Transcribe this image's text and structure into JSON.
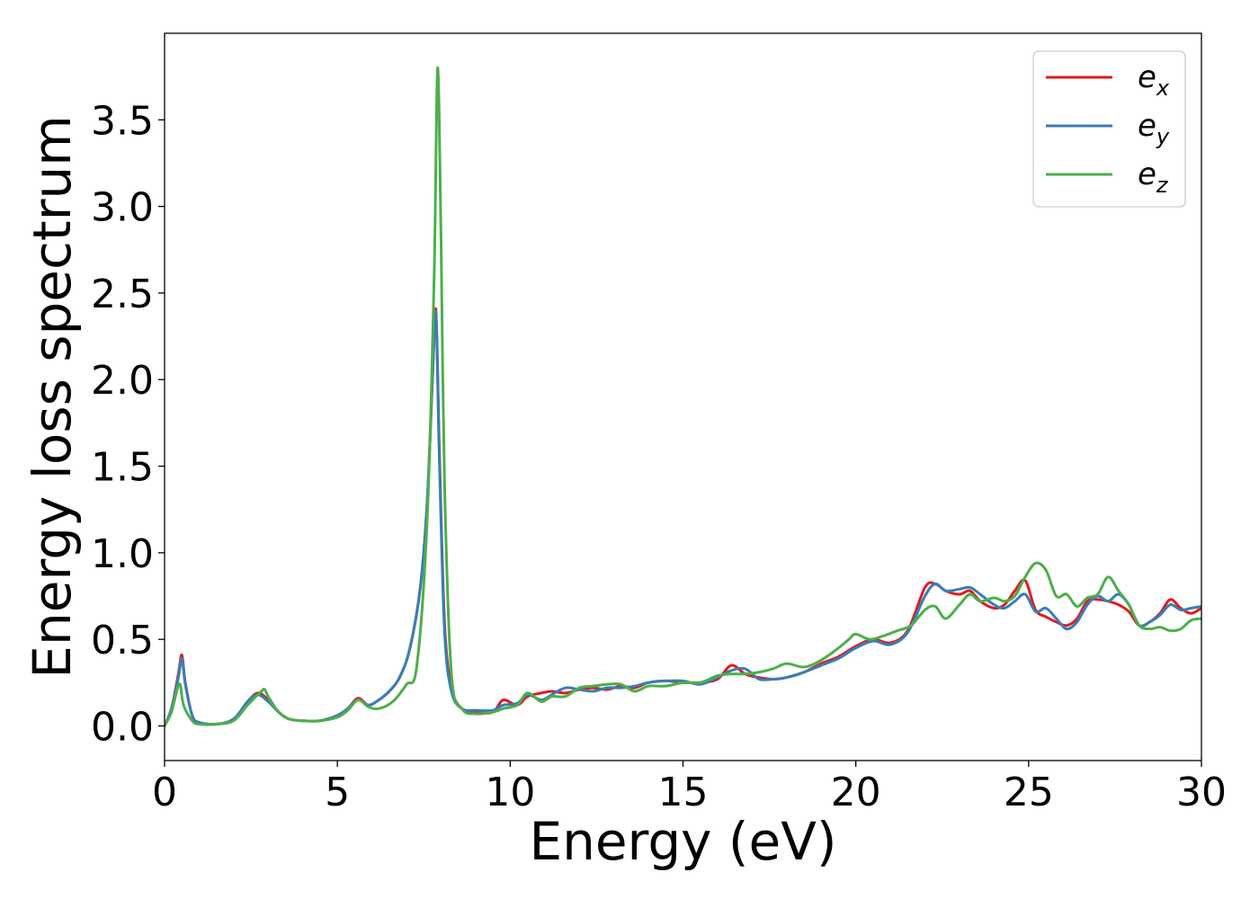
{
  "chart_data": {
    "type": "line",
    "xlabel": "Energy (eV)",
    "ylabel": "Energy loss spectrum",
    "xlim": [
      0,
      30
    ],
    "ylim": [
      -0.2,
      4.0
    ],
    "x_ticks": [
      0,
      5,
      10,
      15,
      20,
      25,
      30
    ],
    "x_tick_labels": [
      "0",
      "5",
      "10",
      "15",
      "20",
      "25",
      "30"
    ],
    "y_ticks": [
      0.0,
      0.5,
      1.0,
      1.5,
      2.0,
      2.5,
      3.0,
      3.5
    ],
    "y_tick_labels": [
      "0.0",
      "0.5",
      "1.0",
      "1.5",
      "2.0",
      "2.5",
      "3.0",
      "3.5"
    ],
    "grid": false,
    "legend_position": "top-right",
    "series": [
      {
        "name": "e_x",
        "label_base": "e",
        "label_sub": "x",
        "color": "#e41a1c",
        "x": [
          0,
          0.2,
          0.4,
          0.5,
          0.6,
          0.8,
          1.0,
          1.5,
          2.0,
          2.4,
          2.7,
          3.0,
          3.3,
          3.6,
          4.0,
          4.5,
          5.0,
          5.3,
          5.6,
          5.9,
          6.2,
          6.5,
          6.8,
          7.1,
          7.4,
          7.6,
          7.75,
          7.85,
          7.95,
          8.1,
          8.3,
          8.6,
          9.0,
          9.5,
          9.8,
          10.2,
          10.5,
          10.9,
          11.2,
          11.6,
          12.0,
          12.4,
          12.8,
          13.2,
          13.6,
          14.0,
          14.5,
          15.0,
          15.5,
          16.0,
          16.4,
          16.8,
          17.2,
          17.6,
          18.0,
          18.5,
          19.0,
          19.5,
          20.0,
          20.5,
          21.0,
          21.5,
          22.0,
          22.3,
          22.6,
          23.0,
          23.3,
          23.6,
          24.0,
          24.3,
          24.6,
          24.9,
          25.2,
          25.5,
          25.8,
          26.1,
          26.4,
          26.7,
          27.0,
          27.3,
          27.6,
          27.9,
          28.2,
          28.5,
          28.8,
          29.1,
          29.4,
          29.7,
          30.0
        ],
        "y": [
          0.0,
          0.1,
          0.3,
          0.41,
          0.25,
          0.06,
          0.02,
          0.01,
          0.04,
          0.14,
          0.19,
          0.15,
          0.08,
          0.04,
          0.03,
          0.03,
          0.06,
          0.1,
          0.16,
          0.12,
          0.15,
          0.2,
          0.28,
          0.45,
          0.8,
          1.3,
          2.0,
          2.4,
          1.6,
          0.6,
          0.22,
          0.1,
          0.08,
          0.08,
          0.15,
          0.12,
          0.17,
          0.19,
          0.2,
          0.19,
          0.21,
          0.22,
          0.21,
          0.23,
          0.22,
          0.25,
          0.26,
          0.25,
          0.25,
          0.27,
          0.35,
          0.3,
          0.28,
          0.27,
          0.28,
          0.31,
          0.36,
          0.4,
          0.46,
          0.5,
          0.48,
          0.55,
          0.8,
          0.82,
          0.78,
          0.76,
          0.78,
          0.72,
          0.68,
          0.7,
          0.78,
          0.84,
          0.67,
          0.63,
          0.6,
          0.58,
          0.62,
          0.72,
          0.73,
          0.72,
          0.7,
          0.66,
          0.58,
          0.6,
          0.65,
          0.73,
          0.68,
          0.65,
          0.68
        ]
      },
      {
        "name": "e_y",
        "label_base": "e",
        "label_sub": "y",
        "color": "#377eb8",
        "x": [
          0,
          0.2,
          0.4,
          0.5,
          0.6,
          0.8,
          1.0,
          1.5,
          2.0,
          2.4,
          2.7,
          3.0,
          3.3,
          3.6,
          4.0,
          4.5,
          5.0,
          5.3,
          5.6,
          5.9,
          6.2,
          6.5,
          6.8,
          7.1,
          7.4,
          7.6,
          7.75,
          7.85,
          7.95,
          8.1,
          8.3,
          8.6,
          9.0,
          9.5,
          9.8,
          10.2,
          10.5,
          10.9,
          11.2,
          11.6,
          12.0,
          12.4,
          12.8,
          13.2,
          13.6,
          14.0,
          14.5,
          15.0,
          15.5,
          16.0,
          16.4,
          16.8,
          17.2,
          17.6,
          18.0,
          18.5,
          19.0,
          19.5,
          20.0,
          20.5,
          21.0,
          21.5,
          22.0,
          22.3,
          22.6,
          23.0,
          23.3,
          23.6,
          24.0,
          24.3,
          24.6,
          24.9,
          25.2,
          25.5,
          25.8,
          26.1,
          26.4,
          26.7,
          27.0,
          27.3,
          27.6,
          27.9,
          28.2,
          28.5,
          28.8,
          29.1,
          29.4,
          29.7,
          30.0
        ],
        "y": [
          0.0,
          0.1,
          0.28,
          0.39,
          0.24,
          0.06,
          0.02,
          0.01,
          0.04,
          0.14,
          0.18,
          0.14,
          0.08,
          0.04,
          0.03,
          0.03,
          0.06,
          0.1,
          0.15,
          0.12,
          0.15,
          0.2,
          0.28,
          0.45,
          0.8,
          1.3,
          2.0,
          2.38,
          1.55,
          0.55,
          0.2,
          0.1,
          0.09,
          0.09,
          0.12,
          0.13,
          0.18,
          0.15,
          0.18,
          0.22,
          0.21,
          0.2,
          0.22,
          0.22,
          0.23,
          0.25,
          0.26,
          0.26,
          0.24,
          0.28,
          0.32,
          0.33,
          0.27,
          0.27,
          0.28,
          0.31,
          0.35,
          0.39,
          0.45,
          0.49,
          0.47,
          0.54,
          0.75,
          0.82,
          0.78,
          0.79,
          0.8,
          0.76,
          0.7,
          0.68,
          0.72,
          0.76,
          0.66,
          0.68,
          0.62,
          0.56,
          0.6,
          0.7,
          0.75,
          0.72,
          0.76,
          0.7,
          0.58,
          0.6,
          0.64,
          0.7,
          0.67,
          0.68,
          0.69
        ]
      },
      {
        "name": "e_z",
        "label_base": "e",
        "label_sub": "z",
        "color": "#4daf4a",
        "x": [
          0,
          0.2,
          0.35,
          0.45,
          0.55,
          0.8,
          1.0,
          1.5,
          2.0,
          2.4,
          2.8,
          2.9,
          3.0,
          3.3,
          3.6,
          4.0,
          4.5,
          5.0,
          5.3,
          5.6,
          5.9,
          6.2,
          6.6,
          7.0,
          7.3,
          7.6,
          7.8,
          7.9,
          8.0,
          8.1,
          8.3,
          8.6,
          9.0,
          9.5,
          9.8,
          10.2,
          10.5,
          10.9,
          11.2,
          11.6,
          12.0,
          12.4,
          12.8,
          13.2,
          13.6,
          14.0,
          14.5,
          15.0,
          15.5,
          16.0,
          16.4,
          16.8,
          17.2,
          17.6,
          18.0,
          18.5,
          19.0,
          19.5,
          19.8,
          20.0,
          20.4,
          20.8,
          21.2,
          21.6,
          22.0,
          22.3,
          22.6,
          23.0,
          23.3,
          23.6,
          24.0,
          24.3,
          24.6,
          24.9,
          25.2,
          25.5,
          25.8,
          26.1,
          26.4,
          26.7,
          27.0,
          27.3,
          27.6,
          27.9,
          28.2,
          28.5,
          28.8,
          29.1,
          29.4,
          29.7,
          30.0
        ],
        "y": [
          0.0,
          0.08,
          0.2,
          0.24,
          0.12,
          0.03,
          0.01,
          0.01,
          0.03,
          0.12,
          0.2,
          0.21,
          0.17,
          0.08,
          0.04,
          0.03,
          0.03,
          0.05,
          0.09,
          0.15,
          0.11,
          0.1,
          0.14,
          0.24,
          0.35,
          1.2,
          2.6,
          3.8,
          2.8,
          1.4,
          0.3,
          0.1,
          0.07,
          0.08,
          0.1,
          0.12,
          0.19,
          0.14,
          0.17,
          0.17,
          0.22,
          0.23,
          0.24,
          0.24,
          0.2,
          0.23,
          0.23,
          0.25,
          0.25,
          0.29,
          0.3,
          0.3,
          0.31,
          0.33,
          0.36,
          0.34,
          0.38,
          0.45,
          0.5,
          0.53,
          0.5,
          0.52,
          0.55,
          0.58,
          0.67,
          0.69,
          0.62,
          0.7,
          0.76,
          0.72,
          0.74,
          0.72,
          0.75,
          0.86,
          0.94,
          0.9,
          0.75,
          0.76,
          0.69,
          0.74,
          0.76,
          0.86,
          0.78,
          0.7,
          0.58,
          0.56,
          0.57,
          0.55,
          0.56,
          0.61,
          0.62
        ]
      }
    ]
  }
}
